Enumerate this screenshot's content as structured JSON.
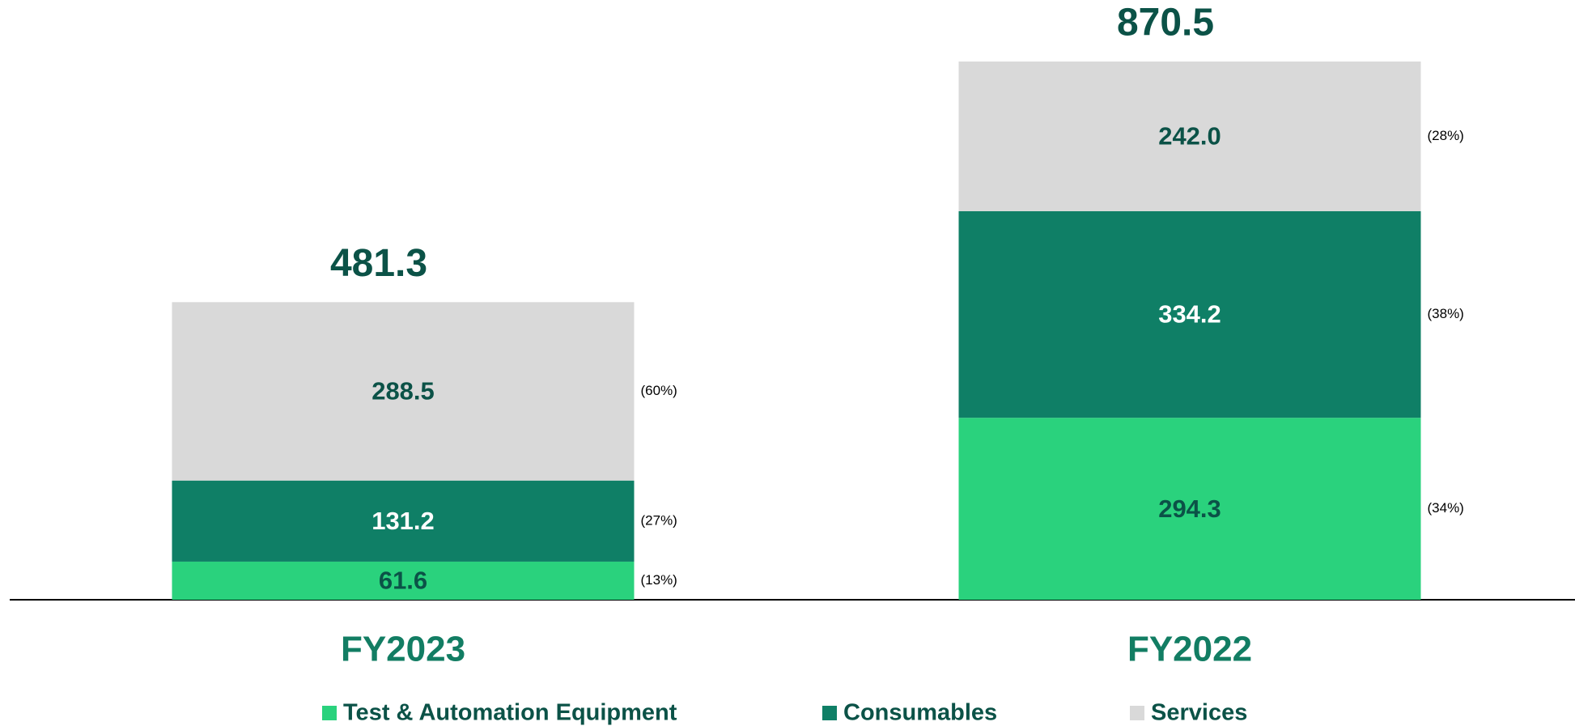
{
  "chart_data": {
    "type": "stacked_bar",
    "categories": [
      "FY2023",
      "FY2022"
    ],
    "totals": [
      481.3,
      870.5
    ],
    "series": [
      {
        "name": "Test & Automation Equipment",
        "color": "#2ad27d",
        "label_color": "#0b5247",
        "values": [
          61.6,
          294.3
        ],
        "value_labels": [
          "61.6",
          "294.3"
        ],
        "share_labels": [
          "(13%)",
          "(34%)"
        ]
      },
      {
        "name": "Consumables",
        "color": "#0f7f66",
        "label_color": "#ffffff",
        "values": [
          131.2,
          334.2
        ],
        "value_labels": [
          "131.2",
          "334.2"
        ],
        "share_labels": [
          "(27%)",
          "(38%)"
        ]
      },
      {
        "name": "Services",
        "color": "#d9d9d9",
        "label_color": "#0b5247",
        "values": [
          288.5,
          242.0
        ],
        "value_labels": [
          "288.5",
          "242.0"
        ],
        "share_labels": [
          "(60%)",
          "(28%)"
        ]
      }
    ]
  }
}
